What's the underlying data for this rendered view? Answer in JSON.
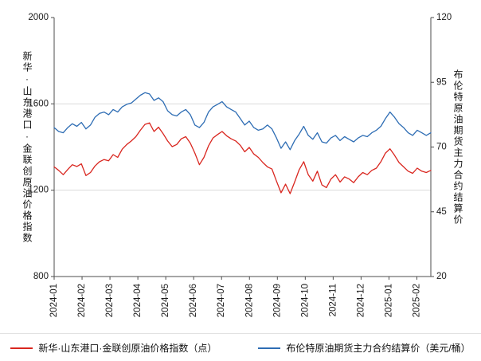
{
  "chart_data": {
    "type": "line",
    "title": "",
    "x_tick_labels": [
      "2024-01",
      "2024-02",
      "2024-03",
      "2024-04",
      "2024-05",
      "2024-06",
      "2024-07",
      "2024-08",
      "2024-09",
      "2024-10",
      "2024-11",
      "2024-12",
      "2025-01",
      "2025-02"
    ],
    "months_span": 13.5,
    "grid": "horizontal-only",
    "legend_position": "bottom",
    "axes": {
      "left": {
        "label": "新华·山东港口·金联创原油价格指数",
        "min": 800,
        "max": 2000,
        "ticks": [
          800,
          1200,
          1600,
          2000
        ]
      },
      "right": {
        "label": "布伦特原油期货主力合约结算价",
        "min": 20,
        "max": 120,
        "ticks": [
          20,
          45,
          70,
          95,
          120
        ]
      }
    },
    "gridlines_left_values": [
      1200,
      1600
    ],
    "series": [
      {
        "name": "新华·山东港口·金联创原油价格指数（点）",
        "axis": "left",
        "color": "#d9261f",
        "values": [
          1308,
          1292,
          1272,
          1296,
          1318,
          1310,
          1322,
          1268,
          1282,
          1312,
          1332,
          1342,
          1336,
          1365,
          1352,
          1390,
          1412,
          1428,
          1448,
          1478,
          1505,
          1512,
          1472,
          1492,
          1462,
          1428,
          1402,
          1412,
          1438,
          1448,
          1418,
          1372,
          1318,
          1352,
          1405,
          1442,
          1458,
          1472,
          1452,
          1438,
          1428,
          1408,
          1378,
          1398,
          1368,
          1352,
          1328,
          1308,
          1298,
          1242,
          1188,
          1228,
          1184,
          1238,
          1295,
          1332,
          1272,
          1242,
          1288,
          1225,
          1212,
          1252,
          1272,
          1238,
          1262,
          1252,
          1235,
          1262,
          1282,
          1272,
          1292,
          1302,
          1332,
          1372,
          1392,
          1362,
          1328,
          1308,
          1288,
          1278,
          1302,
          1288,
          1282,
          1292
        ]
      },
      {
        "name": "布伦特原油期货主力合约结算价（美元/桶）",
        "axis": "right",
        "color": "#2e6db4",
        "values": [
          77.5,
          76.0,
          75.5,
          77.5,
          79.0,
          78.0,
          79.5,
          77.0,
          78.5,
          81.5,
          83.0,
          83.5,
          82.5,
          84.5,
          83.5,
          85.5,
          86.5,
          87.0,
          88.5,
          90.0,
          91.0,
          90.5,
          88.0,
          89.0,
          87.5,
          84.0,
          82.5,
          82.0,
          83.5,
          84.5,
          82.5,
          78.5,
          77.5,
          79.5,
          83.5,
          85.5,
          86.5,
          87.5,
          85.5,
          84.5,
          83.5,
          81.0,
          78.5,
          80.0,
          77.5,
          76.5,
          77.0,
          78.5,
          77.0,
          73.5,
          69.5,
          72.0,
          69.0,
          72.5,
          75.0,
          78.0,
          74.5,
          73.0,
          75.5,
          72.0,
          71.5,
          73.5,
          74.5,
          72.5,
          74.0,
          73.0,
          72.0,
          73.5,
          74.5,
          74.0,
          75.5,
          76.5,
          78.0,
          81.0,
          83.5,
          81.5,
          79.0,
          77.5,
          75.5,
          74.5,
          76.5,
          75.5,
          74.5,
          75.5
        ]
      }
    ]
  }
}
